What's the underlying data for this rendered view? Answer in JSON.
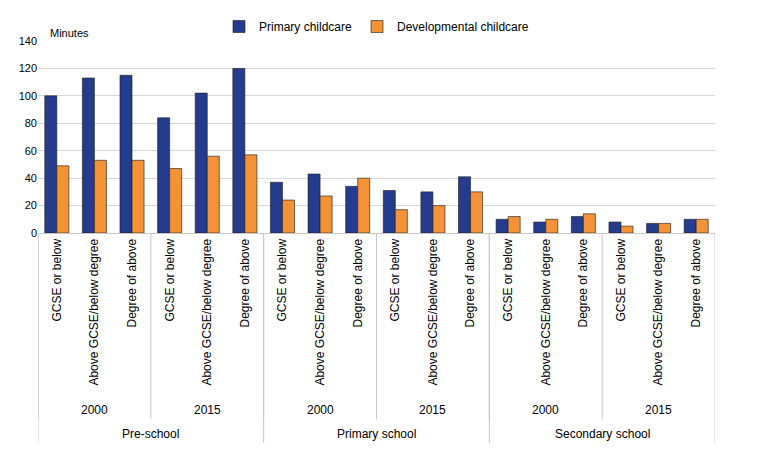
{
  "chart_data": {
    "type": "bar",
    "y_title": "Minutes",
    "categories": [
      [
        "GCSE or below",
        "2000",
        "Pre-school"
      ],
      [
        "Above GCSE/below degree",
        "2000",
        "Pre-school"
      ],
      [
        "Degree of above",
        "2000",
        "Pre-school"
      ],
      [
        "GCSE or below",
        "2015",
        "Pre-school"
      ],
      [
        "Above GCSE/below degree",
        "2015",
        "Pre-school"
      ],
      [
        "Degree of above",
        "2015",
        "Pre-school"
      ],
      [
        "GCSE or below",
        "2000",
        "Primary school"
      ],
      [
        "Above GCSE/below degree",
        "2000",
        "Primary school"
      ],
      [
        "Degree of above",
        "2000",
        "Primary school"
      ],
      [
        "GCSE or below",
        "2015",
        "Primary school"
      ],
      [
        "Above GCSE/below degree",
        "2015",
        "Primary school"
      ],
      [
        "Degree of above",
        "2015",
        "Primary school"
      ],
      [
        "GCSE or below",
        "2000",
        "Secondary school"
      ],
      [
        "Above GCSE/below degree",
        "2000",
        "Secondary school"
      ],
      [
        "Degree of above",
        "2000",
        "Secondary school"
      ],
      [
        "GCSE or below",
        "2015",
        "Secondary school"
      ],
      [
        "Above GCSE/below degree",
        "2015",
        "Secondary school"
      ],
      [
        "Degree of above",
        "2015",
        "Secondary school"
      ]
    ],
    "series": [
      {
        "name": "Primary childcare",
        "color": "#253C8E",
        "values": [
          100,
          113,
          115,
          84,
          102,
          120,
          37,
          43,
          34,
          31,
          30,
          41,
          10,
          8,
          12,
          8,
          7,
          10
        ]
      },
      {
        "name": "Developmental childcare",
        "color": "#F39237",
        "values": [
          49,
          53,
          53,
          47,
          56,
          57,
          24,
          27,
          40,
          17,
          20,
          30,
          12,
          10,
          14,
          5,
          7,
          10
        ]
      }
    ],
    "ylim": [
      0,
      140
    ],
    "yticks": [
      0,
      20,
      40,
      60,
      80,
      100,
      120,
      140
    ],
    "grid": true,
    "legend": "top"
  }
}
